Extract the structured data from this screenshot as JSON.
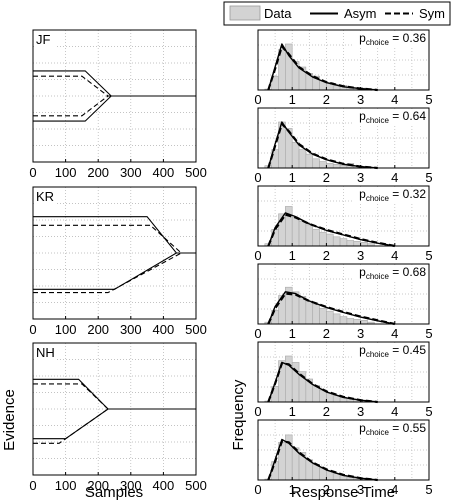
{
  "legend": {
    "entries": [
      {
        "label": "Data",
        "kind": "patch",
        "color": "#d3d3d3"
      },
      {
        "label": "Asym",
        "kind": "solid",
        "color": "#000000"
      },
      {
        "label": "Sym",
        "kind": "dashed",
        "color": "#000000"
      }
    ]
  },
  "left_xlabel": "Samples",
  "left_ylabel": "Evidence",
  "right_xlabel": "Response Time",
  "right_ylabel": "Frequency",
  "p_label_main": "p",
  "p_label_sub": "choice",
  "chart_data": [
    {
      "type": "line",
      "panel": "JF",
      "xlim": [
        0,
        500
      ],
      "xticks": [
        "0",
        "100",
        "200",
        "300",
        "400",
        "500"
      ],
      "series": [
        {
          "name": "Asym",
          "style": "solid",
          "points": [
            [
              0,
              0.38
            ],
            [
              160,
              0.38
            ],
            [
              240,
              0
            ],
            [
              500,
              0
            ]
          ]
        },
        {
          "name": "Asym",
          "style": "solid",
          "points": [
            [
              0,
              -0.38
            ],
            [
              160,
              -0.38
            ],
            [
              240,
              0
            ],
            [
              500,
              0
            ]
          ]
        },
        {
          "name": "Sym",
          "style": "dashed",
          "points": [
            [
              0,
              0.3
            ],
            [
              150,
              0.3
            ],
            [
              230,
              0
            ],
            [
              500,
              0
            ]
          ]
        },
        {
          "name": "Sym",
          "style": "dashed",
          "points": [
            [
              0,
              -0.3
            ],
            [
              150,
              -0.3
            ],
            [
              230,
              0
            ],
            [
              500,
              0
            ]
          ]
        }
      ]
    },
    {
      "type": "line",
      "panel": "KR",
      "xlim": [
        0,
        500
      ],
      "xticks": [
        "0",
        "100",
        "200",
        "300",
        "400",
        "500"
      ],
      "series": [
        {
          "name": "Asym",
          "style": "solid",
          "points": [
            [
              0,
              0.55
            ],
            [
              350,
              0.55
            ],
            [
              440,
              0
            ],
            [
              500,
              0
            ]
          ]
        },
        {
          "name": "Asym",
          "style": "solid",
          "points": [
            [
              0,
              -0.55
            ],
            [
              250,
              -0.55
            ],
            [
              440,
              0
            ],
            [
              500,
              0
            ]
          ]
        },
        {
          "name": "Sym",
          "style": "dashed",
          "points": [
            [
              0,
              0.42
            ],
            [
              360,
              0.42
            ],
            [
              455,
              0
            ],
            [
              500,
              0
            ]
          ]
        },
        {
          "name": "Sym",
          "style": "dashed",
          "points": [
            [
              0,
              -0.6
            ],
            [
              230,
              -0.6
            ],
            [
              455,
              0
            ],
            [
              500,
              0
            ]
          ]
        }
      ]
    },
    {
      "type": "line",
      "panel": "NH",
      "xlim": [
        0,
        500
      ],
      "xticks": [
        "0",
        "100",
        "200",
        "300",
        "400",
        "500"
      ],
      "series": [
        {
          "name": "Asym",
          "style": "solid",
          "points": [
            [
              0,
              0.45
            ],
            [
              140,
              0.45
            ],
            [
              230,
              0
            ],
            [
              500,
              0
            ]
          ]
        },
        {
          "name": "Asym",
          "style": "solid",
          "points": [
            [
              0,
              -0.45
            ],
            [
              100,
              -0.45
            ],
            [
              230,
              0
            ],
            [
              500,
              0
            ]
          ]
        },
        {
          "name": "Sym",
          "style": "dashed",
          "points": [
            [
              0,
              0.38
            ],
            [
              150,
              0.38
            ],
            [
              230,
              0
            ],
            [
              500,
              0
            ]
          ]
        },
        {
          "name": "Sym",
          "style": "dashed",
          "points": [
            [
              0,
              -0.52
            ],
            [
              80,
              -0.52
            ],
            [
              230,
              0
            ],
            [
              500,
              0
            ]
          ]
        }
      ]
    },
    {
      "type": "bar",
      "panel": "JF-1",
      "p_choice": "0.36",
      "xlim": [
        0,
        5
      ],
      "xticks": [
        "0",
        "1",
        "2",
        "3",
        "4",
        "5"
      ],
      "hist": [
        0.02,
        0.3,
        0.88,
        1.0,
        0.62,
        0.5,
        0.36,
        0.3,
        0.2,
        0.16,
        0.12,
        0.1,
        0.06,
        0.05,
        0.04
      ],
      "series": [
        {
          "name": "Asym",
          "style": "solid",
          "x": [
            0.3,
            0.5,
            0.7,
            0.9,
            1.2,
            1.6,
            2.0,
            2.5,
            3.0,
            3.5
          ],
          "y": [
            0.0,
            0.5,
            1.0,
            0.75,
            0.48,
            0.28,
            0.16,
            0.07,
            0.03,
            0.0
          ]
        },
        {
          "name": "Sym",
          "style": "dashed",
          "x": [
            0.3,
            0.5,
            0.7,
            0.9,
            1.2,
            1.6,
            2.0,
            2.5,
            3.0,
            3.5
          ],
          "y": [
            0.0,
            0.46,
            0.95,
            0.78,
            0.5,
            0.3,
            0.17,
            0.08,
            0.03,
            0.0
          ]
        }
      ]
    },
    {
      "type": "bar",
      "panel": "JF-2",
      "p_choice": "0.64",
      "xlim": [
        0,
        5
      ],
      "xticks": [
        "0",
        "1",
        "2",
        "3",
        "4",
        "5"
      ],
      "hist": [
        0.05,
        0.4,
        1.0,
        0.86,
        0.56,
        0.4,
        0.3,
        0.2,
        0.14,
        0.1,
        0.08,
        0.06,
        0.1,
        0.04,
        0.02
      ],
      "series": [
        {
          "name": "Asym",
          "style": "solid",
          "x": [
            0.3,
            0.5,
            0.7,
            0.9,
            1.2,
            1.6,
            2.0,
            2.5,
            3.0,
            3.5
          ],
          "y": [
            0.0,
            0.52,
            1.0,
            0.78,
            0.5,
            0.3,
            0.18,
            0.08,
            0.03,
            0.0
          ]
        },
        {
          "name": "Sym",
          "style": "dashed",
          "x": [
            0.3,
            0.5,
            0.7,
            0.9,
            1.2,
            1.6,
            2.0,
            2.5,
            3.0,
            3.5
          ],
          "y": [
            0.0,
            0.48,
            0.96,
            0.8,
            0.52,
            0.31,
            0.19,
            0.09,
            0.03,
            0.0
          ]
        }
      ]
    },
    {
      "type": "bar",
      "panel": "KR-1",
      "p_choice": "0.32",
      "xlim": [
        0,
        5
      ],
      "xticks": [
        "0",
        "1",
        "2",
        "3",
        "4",
        "5"
      ],
      "hist": [
        0.05,
        0.36,
        0.7,
        0.86,
        0.62,
        0.54,
        0.46,
        0.36,
        0.3,
        0.26,
        0.2,
        0.16,
        0.12,
        0.1,
        0.08,
        0.05
      ],
      "series": [
        {
          "name": "Asym",
          "style": "solid",
          "x": [
            0.3,
            0.5,
            0.8,
            1.1,
            1.5,
            2.0,
            2.5,
            3.0,
            3.5,
            4.0
          ],
          "y": [
            0.0,
            0.4,
            0.72,
            0.64,
            0.48,
            0.34,
            0.24,
            0.14,
            0.06,
            0.0
          ]
        },
        {
          "name": "Sym",
          "style": "dashed",
          "x": [
            0.3,
            0.5,
            0.8,
            1.1,
            1.5,
            2.0,
            2.5,
            3.0,
            3.5,
            4.0
          ],
          "y": [
            0.0,
            0.36,
            0.68,
            0.62,
            0.48,
            0.35,
            0.25,
            0.15,
            0.07,
            0.0
          ]
        }
      ]
    },
    {
      "type": "bar",
      "panel": "KR-2",
      "p_choice": "0.68",
      "xlim": [
        0,
        5
      ],
      "xticks": [
        "0",
        "1",
        "2",
        "3",
        "4",
        "5"
      ],
      "hist": [
        0.04,
        0.3,
        0.62,
        0.8,
        0.7,
        0.6,
        0.5,
        0.42,
        0.34,
        0.28,
        0.22,
        0.16,
        0.12,
        0.1,
        0.08,
        0.04
      ],
      "series": [
        {
          "name": "Asym",
          "style": "solid",
          "x": [
            0.3,
            0.5,
            0.8,
            1.1,
            1.5,
            2.0,
            2.5,
            3.0,
            3.5,
            4.0
          ],
          "y": [
            0.0,
            0.38,
            0.7,
            0.66,
            0.5,
            0.36,
            0.25,
            0.15,
            0.07,
            0.0
          ]
        },
        {
          "name": "Sym",
          "style": "dashed",
          "x": [
            0.3,
            0.5,
            0.8,
            1.1,
            1.5,
            2.0,
            2.5,
            3.0,
            3.5,
            4.0
          ],
          "y": [
            0.0,
            0.34,
            0.66,
            0.64,
            0.5,
            0.37,
            0.26,
            0.16,
            0.08,
            0.0
          ]
        }
      ]
    },
    {
      "type": "bar",
      "panel": "NH-1",
      "p_choice": "0.45",
      "xlim": [
        0,
        5
      ],
      "xticks": [
        "0",
        "1",
        "2",
        "3",
        "4",
        "5"
      ],
      "hist": [
        0.02,
        0.34,
        0.9,
        1.0,
        0.86,
        0.66,
        0.5,
        0.36,
        0.26,
        0.2,
        0.14,
        0.1,
        0.08,
        0.05
      ],
      "series": [
        {
          "name": "Asym",
          "style": "solid",
          "x": [
            0.3,
            0.5,
            0.7,
            0.9,
            1.2,
            1.6,
            2.0,
            2.5,
            3.0,
            3.5
          ],
          "y": [
            0.0,
            0.42,
            0.86,
            0.8,
            0.6,
            0.38,
            0.22,
            0.1,
            0.04,
            0.0
          ]
        },
        {
          "name": "Sym",
          "style": "dashed",
          "x": [
            0.3,
            0.5,
            0.7,
            0.9,
            1.2,
            1.6,
            2.0,
            2.5,
            3.0,
            3.5
          ],
          "y": [
            0.0,
            0.4,
            0.84,
            0.82,
            0.62,
            0.39,
            0.23,
            0.11,
            0.04,
            0.0
          ]
        }
      ]
    },
    {
      "type": "bar",
      "panel": "NH-2",
      "p_choice": "0.55",
      "xlim": [
        0,
        5
      ],
      "xticks": [
        "0",
        "1",
        "2",
        "3",
        "4",
        "5"
      ],
      "hist": [
        0.02,
        0.4,
        0.82,
        0.98,
        0.7,
        0.6,
        0.44,
        0.34,
        0.26,
        0.2,
        0.14,
        0.1,
        0.06,
        0.04
      ],
      "series": [
        {
          "name": "Asym",
          "style": "solid",
          "x": [
            0.3,
            0.5,
            0.7,
            0.9,
            1.2,
            1.6,
            2.0,
            2.5,
            3.0,
            3.5
          ],
          "y": [
            0.0,
            0.44,
            0.88,
            0.8,
            0.58,
            0.37,
            0.22,
            0.1,
            0.04,
            0.0
          ]
        },
        {
          "name": "Sym",
          "style": "dashed",
          "x": [
            0.3,
            0.5,
            0.7,
            0.9,
            1.2,
            1.6,
            2.0,
            2.5,
            3.0,
            3.5
          ],
          "y": [
            0.0,
            0.4,
            0.84,
            0.82,
            0.6,
            0.38,
            0.23,
            0.11,
            0.04,
            0.0
          ]
        }
      ]
    }
  ]
}
